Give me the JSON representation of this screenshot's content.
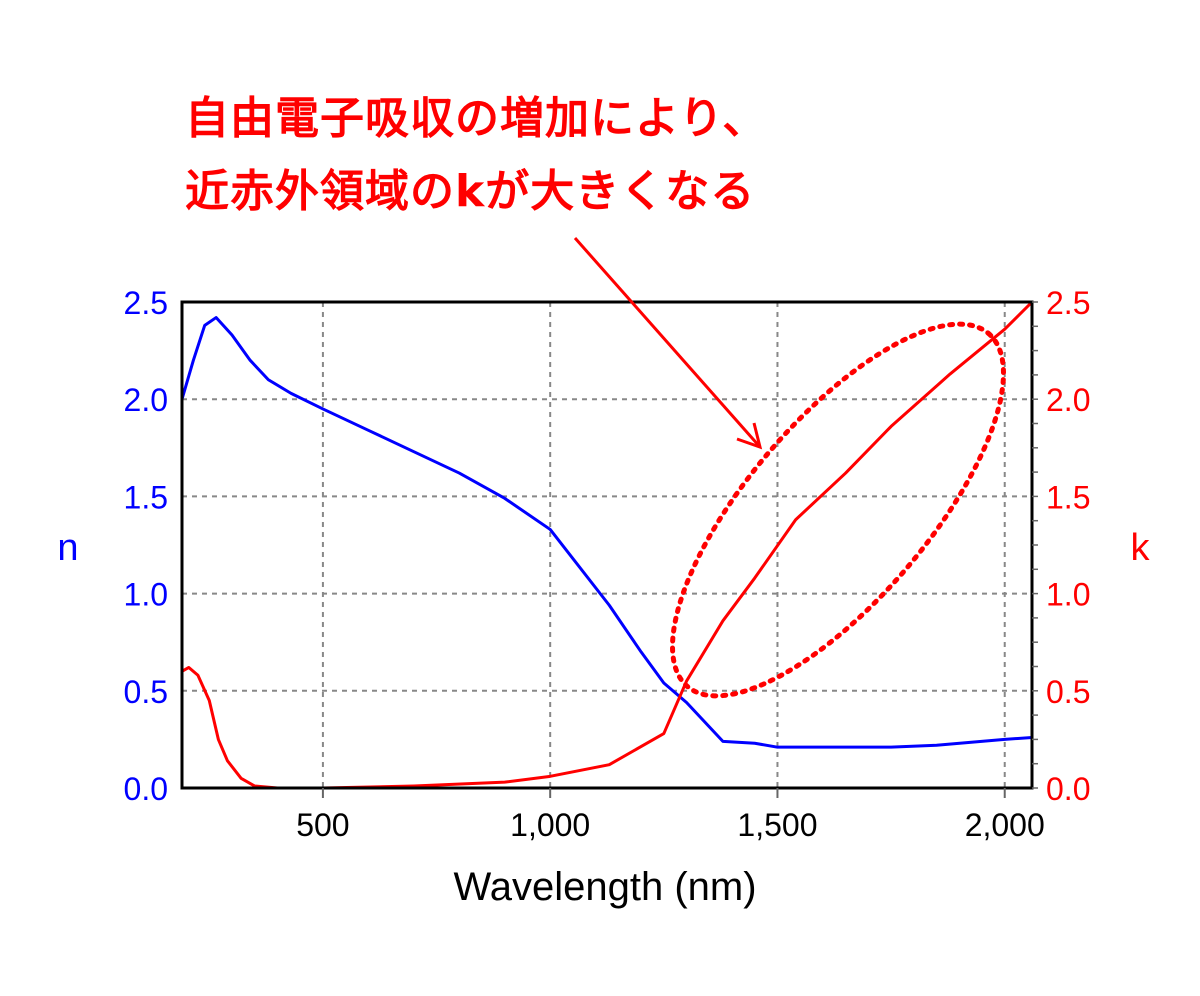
{
  "annotation": {
    "line1": "自由電子吸収の増加により、",
    "line2": "近赤外領域のkが大きくなる",
    "color": "#ff0000"
  },
  "chart_data": {
    "type": "line",
    "xlabel": "Wavelength (nm)",
    "ylabel_left": "n",
    "ylabel_right": "k",
    "xlim": [
      190,
      2060
    ],
    "ylim_left": [
      0,
      2.5
    ],
    "ylim_right": [
      0,
      2.5
    ],
    "x_ticks": [
      500,
      1000,
      1500,
      2000
    ],
    "x_tick_labels": [
      "500",
      "1,000",
      "1,500",
      "2,000"
    ],
    "y_ticks": [
      0,
      0.5,
      1,
      1.5,
      2,
      2.5
    ],
    "y_tick_labels": [
      "0.0",
      "0.5",
      "1.0",
      "1.5",
      "2.0",
      "2.5"
    ],
    "grid": true,
    "series": [
      {
        "name": "n",
        "axis": "left",
        "color": "#0000ff",
        "x": [
          190,
          215,
          240,
          265,
          300,
          340,
          380,
          430,
          500,
          600,
          700,
          800,
          900,
          1000,
          1130,
          1200,
          1250,
          1300,
          1380,
          1450,
          1500,
          1600,
          1750,
          1850,
          2000,
          2060
        ],
        "y": [
          2.0,
          2.2,
          2.38,
          2.42,
          2.33,
          2.2,
          2.1,
          2.03,
          1.95,
          1.84,
          1.73,
          1.62,
          1.49,
          1.33,
          0.94,
          0.7,
          0.54,
          0.44,
          0.24,
          0.23,
          0.21,
          0.21,
          0.21,
          0.22,
          0.25,
          0.26
        ]
      },
      {
        "name": "k",
        "axis": "right",
        "color": "#ff0000",
        "x": [
          190,
          205,
          225,
          250,
          270,
          290,
          320,
          350,
          400,
          500,
          700,
          900,
          1000,
          1130,
          1250,
          1300,
          1380,
          1450,
          1540,
          1650,
          1750,
          1880,
          2000,
          2060
        ],
        "y": [
          0.6,
          0.62,
          0.58,
          0.45,
          0.25,
          0.14,
          0.05,
          0.01,
          0.0,
          0.0,
          0.01,
          0.03,
          0.06,
          0.12,
          0.28,
          0.55,
          0.86,
          1.08,
          1.38,
          1.62,
          1.86,
          2.13,
          2.36,
          2.5
        ]
      }
    ]
  }
}
